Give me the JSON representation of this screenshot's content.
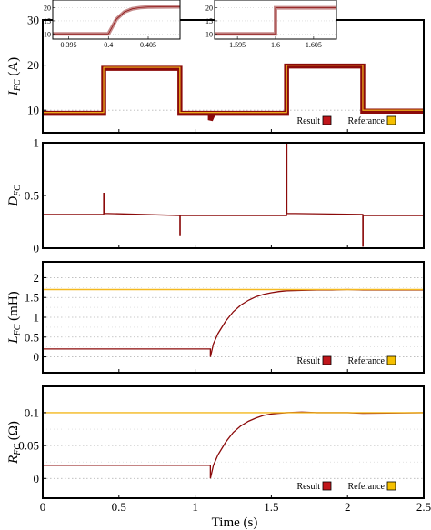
{
  "colors": {
    "result": "#8b0a0a",
    "result_fill": "#c0161b",
    "reference": "#f3b81f",
    "reference_fill": "#f5c000",
    "inset_trace": "#c58b8b"
  },
  "chart_data": [
    {
      "type": "line",
      "ylabel": "I_FC (A)",
      "ylabel_parts": {
        "main": "I",
        "sub": "FC",
        "rest": " (A)"
      },
      "xlim": [
        0,
        2.5
      ],
      "ylim": [
        5,
        30
      ],
      "yticks": [
        10,
        20,
        30
      ],
      "grid": true,
      "legend": {
        "placement": "bottom-right",
        "entries": [
          "Result",
          "Referance"
        ]
      },
      "series": [
        {
          "name": "Result",
          "x": [
            0,
            0.4,
            0.4,
            0.9,
            0.9,
            1.1,
            1.1,
            1.12,
            1.6,
            1.6,
            2.1,
            2.1,
            2.5
          ],
          "y": [
            9.3,
            9.3,
            19.3,
            19.3,
            9.3,
            9.3,
            7.8,
            9.3,
            9.3,
            19.8,
            19.8,
            9.8,
            9.8
          ]
        },
        {
          "name": "Referance",
          "x": [
            0,
            0.4,
            0.4,
            0.9,
            0.9,
            1.6,
            1.6,
            2.1,
            2.1,
            2.5
          ],
          "y": [
            9.5,
            9.5,
            19.5,
            19.5,
            9.5,
            9.5,
            20,
            20,
            10,
            10
          ]
        }
      ],
      "insets": [
        {
          "xlim": [
            0.393,
            0.409
          ],
          "ylim": [
            8,
            23
          ],
          "xticks": [
            0.395,
            0.4,
            0.405
          ],
          "yticks": [
            10,
            15,
            20
          ],
          "x": [
            0.393,
            0.4,
            0.4005,
            0.401,
            0.402,
            0.403,
            0.404,
            0.405,
            0.409
          ],
          "y": [
            10,
            10,
            12.8,
            15.6,
            18.4,
            19.6,
            20.1,
            20.3,
            20.4
          ]
        },
        {
          "xlim": [
            1.592,
            1.608
          ],
          "ylim": [
            8,
            23
          ],
          "xticks": [
            1.595,
            1.6,
            1.605
          ],
          "yticks": [
            10,
            15,
            20
          ],
          "x": [
            1.592,
            1.6,
            1.6,
            1.608
          ],
          "y": [
            10,
            10,
            20,
            20
          ]
        }
      ]
    },
    {
      "type": "line",
      "ylabel": "D_FC",
      "ylabel_parts": {
        "main": "D",
        "sub": "FC",
        "rest": ""
      },
      "xlim": [
        0,
        2.5
      ],
      "ylim": [
        0,
        1
      ],
      "yticks": [
        0,
        0.5,
        1
      ],
      "grid": false,
      "series": [
        {
          "name": "Result",
          "x": [
            0,
            0.4,
            0.4,
            0.402,
            0.402,
            0.9,
            0.9,
            0.902,
            0.902,
            1.6,
            1.6,
            1.602,
            1.602,
            2.1,
            2.1,
            2.102,
            2.102,
            2.5
          ],
          "y": [
            0.32,
            0.32,
            0.52,
            0.52,
            0.33,
            0.31,
            0.12,
            0.12,
            0.31,
            0.31,
            1.0,
            1.0,
            0.33,
            0.32,
            0.02,
            0.02,
            0.31,
            0.31
          ]
        }
      ]
    },
    {
      "type": "line",
      "ylabel": "L_FC (mH)",
      "ylabel_parts": {
        "main": "L",
        "sub": "FC",
        "rest": " (mH)"
      },
      "xlim": [
        0,
        2.5
      ],
      "ylim": [
        -0.4,
        2.4
      ],
      "yticks": [
        0,
        0.5,
        1,
        1.5,
        2
      ],
      "grid": true,
      "legend": {
        "placement": "bottom-right",
        "entries": [
          "Result",
          "Referance"
        ]
      },
      "series": [
        {
          "name": "Result",
          "x": [
            0,
            1.1,
            1.1,
            1.12,
            1.15,
            1.2,
            1.25,
            1.3,
            1.35,
            1.4,
            1.45,
            1.5,
            1.55,
            1.6,
            1.7,
            1.8,
            1.9,
            2.0,
            2.1,
            2.5
          ],
          "y": [
            0.2,
            0.2,
            0.0,
            0.33,
            0.59,
            0.9,
            1.14,
            1.31,
            1.43,
            1.52,
            1.58,
            1.62,
            1.65,
            1.67,
            1.68,
            1.69,
            1.69,
            1.7,
            1.69,
            1.69
          ]
        },
        {
          "name": "Referance",
          "x": [
            0,
            2.5
          ],
          "y": [
            1.7,
            1.7
          ]
        }
      ]
    },
    {
      "type": "line",
      "ylabel": "R_FC (Ω)",
      "ylabel_parts": {
        "main": "R",
        "sub": "FC",
        "rest": " (Ω)"
      },
      "xlim": [
        0,
        2.5
      ],
      "ylim": [
        -0.03,
        0.14
      ],
      "yticks": [
        0,
        0.05,
        0.1
      ],
      "grid": true,
      "legend": {
        "placement": "bottom-right",
        "entries": [
          "Result",
          "Referance"
        ]
      },
      "xlabel": "Time (s)",
      "xticks": [
        0,
        0.5,
        1,
        1.5,
        2,
        2.5
      ],
      "series": [
        {
          "name": "Result",
          "x": [
            0,
            1.1,
            1.1,
            1.12,
            1.15,
            1.2,
            1.25,
            1.3,
            1.35,
            1.4,
            1.45,
            1.5,
            1.55,
            1.6,
            1.7,
            1.8,
            2.0,
            2.1,
            2.5
          ],
          "y": [
            0.02,
            0.02,
            0.0,
            0.02,
            0.036,
            0.055,
            0.07,
            0.08,
            0.087,
            0.092,
            0.096,
            0.098,
            0.099,
            0.1,
            0.101,
            0.1,
            0.1,
            0.099,
            0.1
          ]
        },
        {
          "name": "Referance",
          "x": [
            0,
            2.5
          ],
          "y": [
            0.1,
            0.1
          ]
        }
      ]
    }
  ]
}
